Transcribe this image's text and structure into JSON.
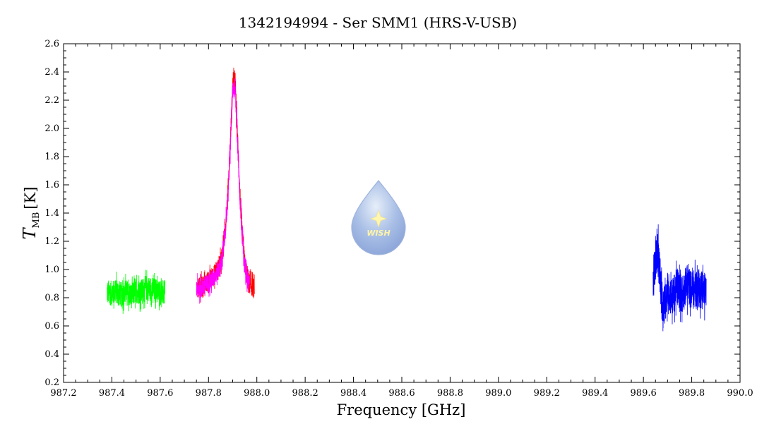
{
  "chart_data": {
    "type": "line",
    "title": "1342194994 - Ser SMM1 (HRS-V-USB)",
    "xlabel": "Frequency [GHz]",
    "ylabel": {
      "main": "T",
      "sub": "MB",
      "unit": "[K]"
    },
    "xlim": [
      987.2,
      990.0
    ],
    "ylim": [
      0.2,
      2.6
    ],
    "x_ticks": [
      "987.2",
      "987.4",
      "987.6",
      "987.8",
      "988.0",
      "988.2",
      "988.4",
      "988.6",
      "988.8",
      "989.0",
      "989.2",
      "989.4",
      "989.6",
      "989.8",
      "990.0"
    ],
    "y_ticks": [
      "0.2",
      "0.4",
      "0.6",
      "0.8",
      "1.0",
      "1.2",
      "1.4",
      "1.6",
      "1.8",
      "2.0",
      "2.2",
      "2.4",
      "2.6"
    ],
    "grid": false,
    "logo": {
      "text": "WISH"
    },
    "series": [
      {
        "color": "#00ff00",
        "x": [
          987.38,
          987.4,
          987.42,
          987.44,
          987.46,
          987.48,
          987.5,
          987.52,
          987.54,
          987.56,
          987.58,
          987.6,
          987.62
        ],
        "y": [
          0.84,
          0.83,
          0.85,
          0.82,
          0.84,
          0.81,
          0.85,
          0.84,
          0.87,
          0.86,
          0.85,
          0.84,
          0.83
        ]
      },
      {
        "color": "#ff0000",
        "x": [
          987.75,
          987.77,
          987.79,
          987.81,
          987.83,
          987.85,
          987.86,
          987.87,
          987.88,
          987.89,
          987.9,
          987.91,
          987.92,
          987.93,
          987.94,
          987.95,
          987.96,
          987.97,
          987.98,
          987.99
        ],
        "y": [
          0.86,
          0.88,
          0.9,
          0.94,
          0.98,
          1.05,
          1.15,
          1.3,
          1.55,
          1.9,
          2.3,
          2.35,
          1.95,
          1.55,
          1.25,
          1.05,
          0.95,
          0.9,
          0.88,
          0.86
        ]
      },
      {
        "color": "#ff00ff",
        "x": [
          987.75,
          987.77,
          987.79,
          987.81,
          987.83,
          987.85,
          987.86,
          987.87,
          987.88,
          987.89,
          987.9,
          987.91,
          987.92,
          987.93,
          987.94,
          987.95,
          987.96,
          987.97
        ],
        "y": [
          0.86,
          0.87,
          0.89,
          0.92,
          0.96,
          1.03,
          1.12,
          1.28,
          1.5,
          1.85,
          2.25,
          2.3,
          1.9,
          1.5,
          1.22,
          1.03,
          0.94,
          0.89
        ]
      },
      {
        "color": "#0000ff",
        "x": [
          989.64,
          989.66,
          989.68,
          989.7,
          989.72,
          989.74,
          989.76,
          989.78,
          989.8,
          989.82,
          989.84,
          989.86
        ],
        "y": [
          0.95,
          1.15,
          0.7,
          0.85,
          0.8,
          0.88,
          0.82,
          0.9,
          0.85,
          0.87,
          0.86,
          0.84
        ]
      }
    ]
  }
}
